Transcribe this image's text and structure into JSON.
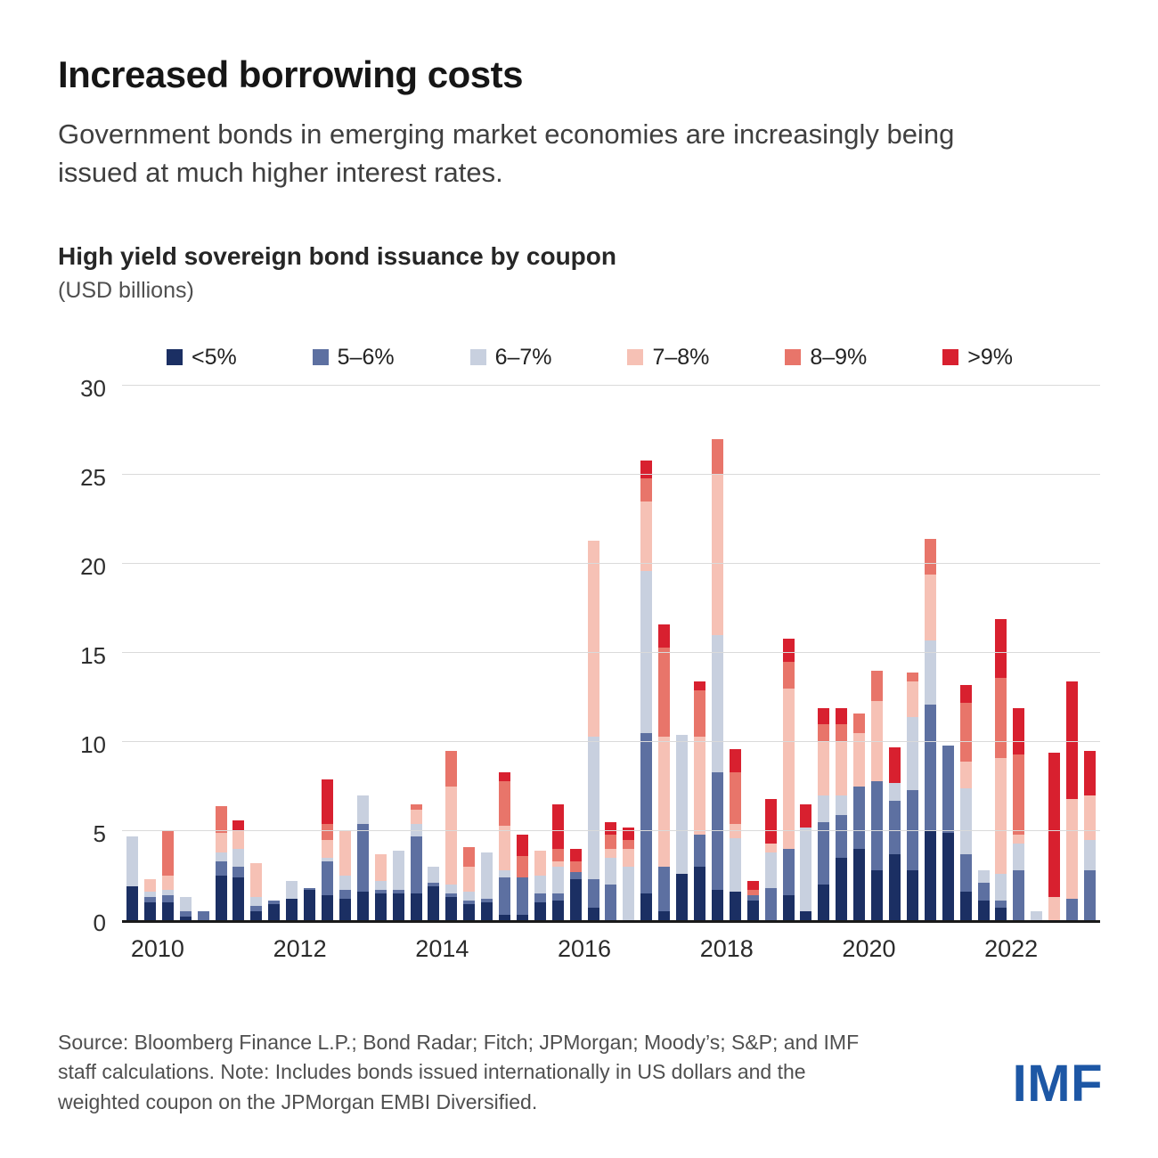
{
  "header": {
    "title": "Increased borrowing costs",
    "subtitle": "Government bonds in emerging market economies are increasingly being issued at much higher interest rates."
  },
  "chart_header": {
    "title": "High yield sovereign bond issuance by coupon",
    "units": "(USD billions)"
  },
  "footer": {
    "source": "Source: Bloomberg Finance L.P.; Bond Radar; Fitch; JPMorgan; Moody’s; S&P; and IMF staff calculations. Note: Includes bonds issued internationally in US dollars and the weighted coupon on the JPMorgan EMBI Diversified.",
    "logo": "IMF",
    "logo_color": "#1d57a5"
  },
  "chart_data": {
    "type": "bar",
    "stacked": true,
    "title": "High yield sovereign bond issuance by coupon",
    "units": "USD billions",
    "ylim": [
      0,
      30
    ],
    "yticks": [
      0,
      5,
      10,
      15,
      20,
      25,
      30
    ],
    "grid": true,
    "legend_position": "top",
    "year_ticks": [
      2010,
      2012,
      2014,
      2016,
      2018,
      2020,
      2022
    ],
    "quarters": [
      "2010Q1",
      "2010Q2",
      "2010Q3",
      "2010Q4",
      "2011Q1",
      "2011Q2",
      "2011Q3",
      "2011Q4",
      "2012Q1",
      "2012Q2",
      "2012Q3",
      "2012Q4",
      "2013Q1",
      "2013Q2",
      "2013Q3",
      "2013Q4",
      "2014Q1",
      "2014Q2",
      "2014Q3",
      "2014Q4",
      "2015Q1",
      "2015Q2",
      "2015Q3",
      "2015Q4",
      "2016Q1",
      "2016Q2",
      "2016Q3",
      "2016Q4",
      "2017Q1",
      "2017Q2",
      "2017Q3",
      "2017Q4",
      "2018Q1",
      "2018Q2",
      "2018Q3",
      "2018Q4",
      "2019Q1",
      "2019Q2",
      "2019Q3",
      "2019Q4",
      "2020Q1",
      "2020Q2",
      "2020Q3",
      "2020Q4",
      "2021Q1",
      "2021Q2",
      "2021Q3",
      "2021Q4",
      "2022Q1",
      "2022Q2",
      "2022Q3",
      "2022Q4",
      "2023Q1",
      "2023Q2",
      "2023Q3"
    ],
    "series": [
      {
        "name": "<5%",
        "color": "#1b2f63",
        "values": [
          1.9,
          1.0,
          1.0,
          0.2,
          0,
          2.5,
          2.4,
          0.5,
          0.9,
          1.2,
          1.7,
          1.4,
          1.2,
          1.6,
          1.5,
          1.5,
          1.5,
          1.9,
          1.3,
          0.9,
          1.0,
          0.3,
          0.3,
          1.0,
          1.1,
          2.3,
          0.7,
          0,
          0,
          1.5,
          0.5,
          2.6,
          3.0,
          1.7,
          1.6,
          1.1,
          0,
          1.4,
          0.5,
          2.0,
          3.5,
          4.0,
          2.8,
          3.7,
          2.8,
          5.0,
          4.9,
          1.6,
          1.1,
          0.7,
          0,
          0,
          0,
          0,
          0
        ]
      },
      {
        "name": "5–6%",
        "color": "#5d70a1",
        "values": [
          0,
          0.3,
          0.4,
          0.3,
          0.5,
          0.8,
          0.6,
          0.3,
          0.2,
          0,
          0.1,
          1.9,
          0.5,
          3.8,
          0.2,
          0.2,
          3.2,
          0.2,
          0.2,
          0.2,
          0.2,
          2.1,
          2.1,
          0.5,
          0.4,
          0.4,
          1.6,
          2.0,
          0,
          9.0,
          2.5,
          0,
          1.8,
          6.6,
          0,
          0.3,
          1.8,
          2.6,
          0,
          3.5,
          2.4,
          3.5,
          5.0,
          3.0,
          4.5,
          7.1,
          4.9,
          2.1,
          1.0,
          0.4,
          2.8,
          0,
          0,
          1.2,
          2.8
        ]
      },
      {
        "name": "6–7%",
        "color": "#c8d0df",
        "values": [
          2.8,
          0.3,
          0.3,
          0.8,
          0,
          0.5,
          1.0,
          0.5,
          0,
          1.0,
          0,
          0.2,
          0.8,
          1.6,
          0.5,
          2.2,
          0.7,
          0.9,
          0.5,
          0.5,
          2.6,
          0.4,
          0,
          1.0,
          1.5,
          0,
          8.0,
          1.5,
          3.0,
          9.1,
          0,
          7.8,
          0,
          7.7,
          3.0,
          0,
          2.0,
          0,
          4.7,
          1.5,
          1.1,
          0,
          0,
          1.0,
          4.1,
          3.6,
          0,
          3.7,
          0.7,
          1.5,
          1.5,
          0.5,
          0,
          0,
          1.7
        ]
      },
      {
        "name": "7–8%",
        "color": "#f6c1b5",
        "values": [
          0,
          0.7,
          0.8,
          0,
          0,
          1.1,
          1.0,
          1.9,
          0,
          0,
          0,
          1.0,
          2.5,
          0,
          1.5,
          0,
          0.8,
          0,
          5.5,
          1.4,
          0,
          2.5,
          0,
          1.4,
          0.3,
          0,
          11.0,
          0.5,
          1.0,
          3.9,
          7.3,
          0,
          5.5,
          9.0,
          0.8,
          0,
          0.5,
          9.0,
          0,
          3.0,
          3.0,
          3.0,
          4.5,
          0,
          2.0,
          3.7,
          0,
          1.5,
          0,
          6.5,
          0.5,
          0,
          1.3,
          5.6,
          2.5
        ]
      },
      {
        "name": "8–9%",
        "color": "#e8756a",
        "values": [
          0,
          0,
          2.5,
          0,
          0,
          1.5,
          0,
          0,
          0,
          0,
          0,
          0.9,
          0,
          0,
          0,
          0,
          0.3,
          0,
          2.0,
          1.1,
          0,
          2.5,
          1.2,
          0,
          0.7,
          0.6,
          0,
          0.8,
          0.5,
          1.3,
          5.0,
          0,
          2.6,
          2.0,
          2.9,
          0.3,
          0,
          1.5,
          0,
          1.0,
          1.0,
          1.1,
          1.7,
          0,
          0.5,
          2.0,
          0,
          3.3,
          0,
          4.5,
          4.5,
          0,
          0,
          0,
          0
        ]
      },
      {
        "name": ">9%",
        "color": "#d8202f",
        "values": [
          0,
          0,
          0,
          0,
          0,
          0,
          0.6,
          0,
          0,
          0,
          0,
          2.5,
          0,
          0,
          0,
          0,
          0,
          0,
          0,
          0,
          0,
          0.5,
          1.2,
          0,
          2.5,
          0.7,
          0,
          0.7,
          0.7,
          1.0,
          1.3,
          0,
          0.5,
          0,
          1.3,
          0.5,
          2.5,
          1.3,
          1.3,
          0.9,
          0.9,
          0,
          0,
          2.0,
          0,
          0,
          0,
          1.0,
          0,
          3.3,
          2.6,
          0,
          8.1,
          6.6,
          2.5
        ]
      }
    ]
  }
}
